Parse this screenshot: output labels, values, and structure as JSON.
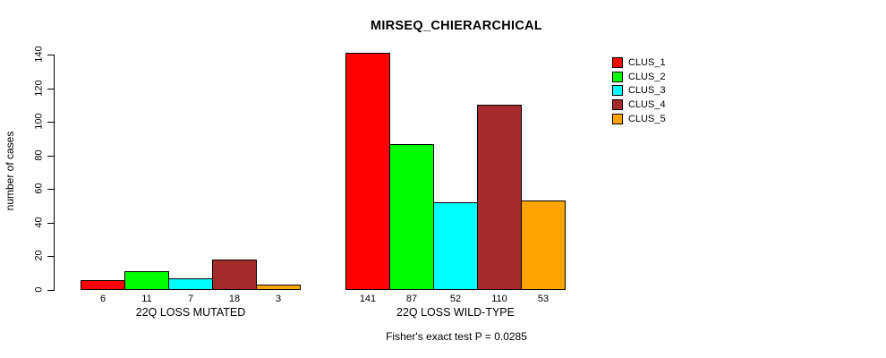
{
  "chart_data": {
    "type": "bar",
    "title": "MIRSEQ_CHIERARCHICAL",
    "ylabel": "number of cases",
    "xlabel": "",
    "categories": [
      "22Q LOSS MUTATED",
      "22Q LOSS WILD-TYPE"
    ],
    "series": [
      {
        "name": "CLUS_1",
        "color": "#FF0000",
        "values": [
          6,
          141
        ]
      },
      {
        "name": "CLUS_2",
        "color": "#00FF00",
        "values": [
          11,
          87
        ]
      },
      {
        "name": "CLUS_3",
        "color": "#00FFFF",
        "values": [
          7,
          52
        ]
      },
      {
        "name": "CLUS_4",
        "color": "#A52A2A",
        "values": [
          18,
          110
        ]
      },
      {
        "name": "CLUS_5",
        "color": "#FFA500",
        "values": [
          3,
          53
        ]
      }
    ],
    "ylim": [
      0,
      140
    ],
    "yticks": [
      0,
      20,
      40,
      60,
      80,
      100,
      120,
      140
    ],
    "grid": false,
    "bar_value_labels": true,
    "legend_position": "right-outside",
    "annotation": "Fisher's exact test P = 0.0285"
  }
}
